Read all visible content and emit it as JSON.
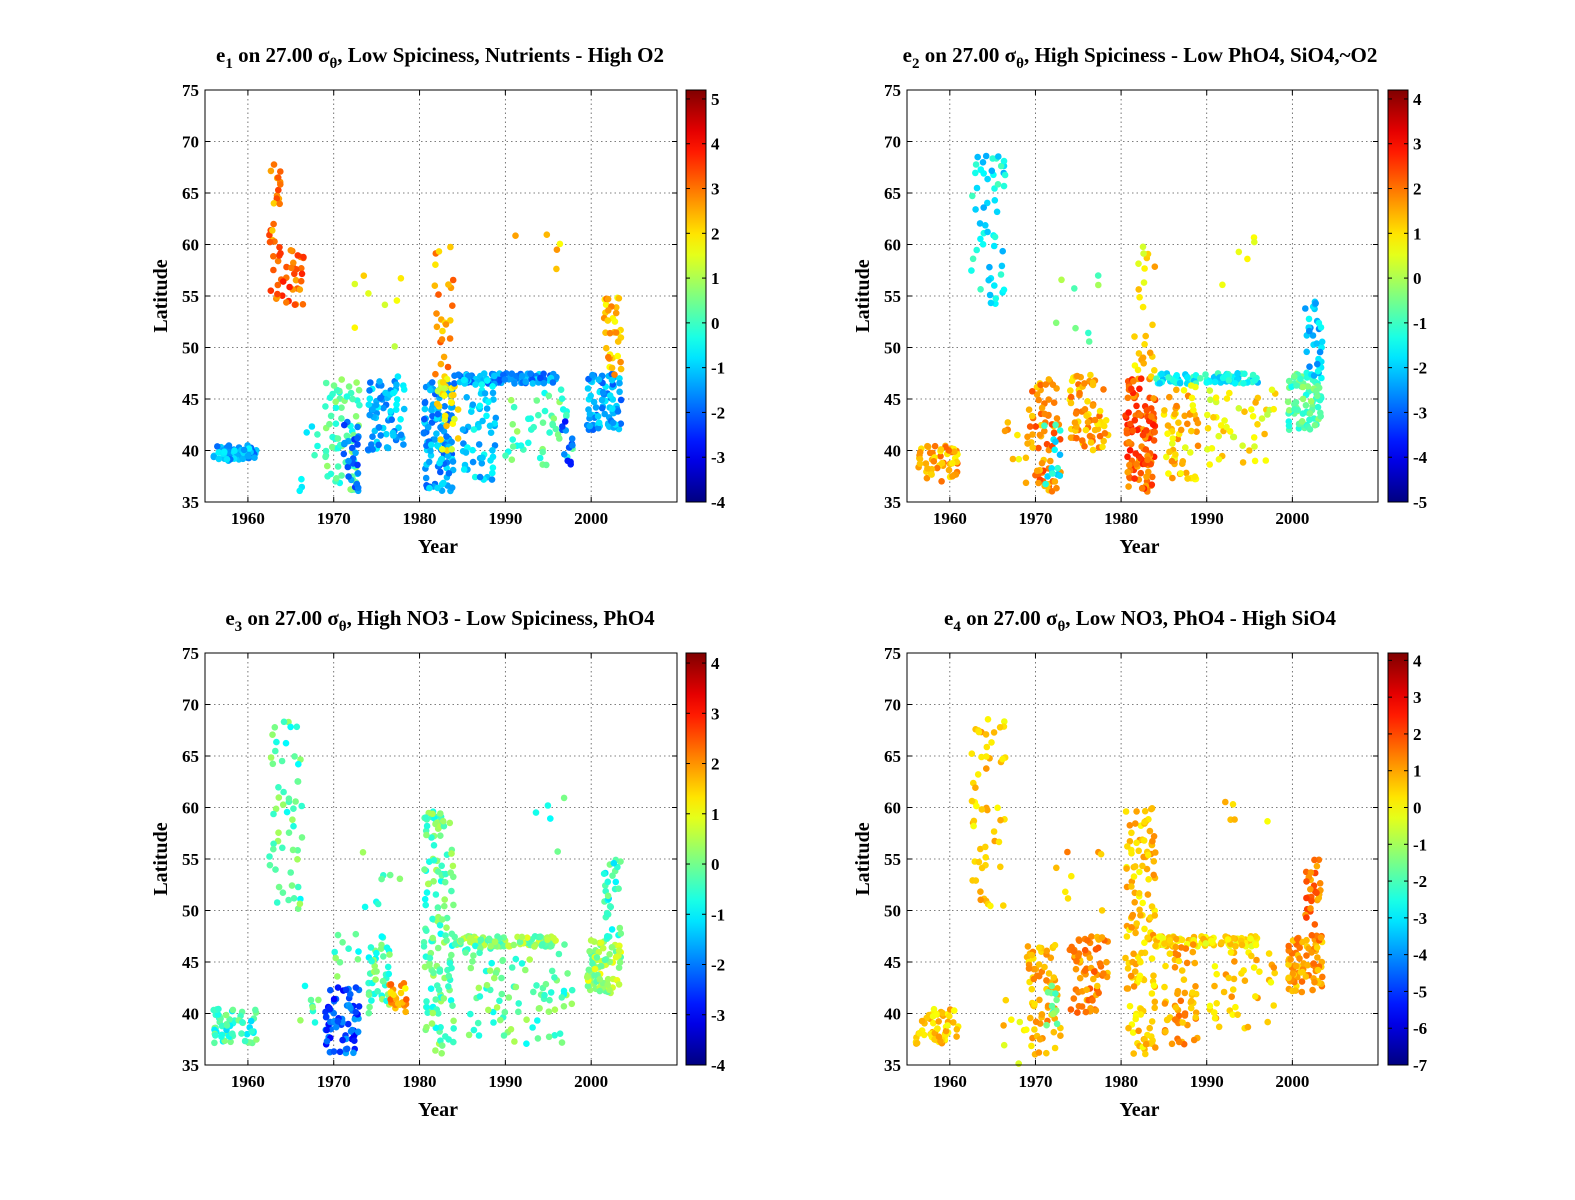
{
  "chart_data": [
    {
      "type": "scatter",
      "title": {
        "base": "e",
        "sub": "1",
        "pre": " on 27.00 ",
        "sigma": "σ",
        "sigma_sub": "θ",
        "rest": ", Low Spiciness, Nutrients - High O2"
      },
      "xlabel": "Year",
      "ylabel": "Latitude",
      "xlim": [
        1955,
        2010
      ],
      "ylim": [
        35,
        75
      ],
      "xticks": [
        1960,
        1970,
        1980,
        1990,
        2000
      ],
      "yticks": [
        35,
        40,
        45,
        50,
        55,
        60,
        65,
        70,
        75
      ],
      "grid": true,
      "colorbar": {
        "min": -4,
        "max": 5.2,
        "ticks": [
          -4,
          -3,
          -2,
          -1,
          0,
          1,
          2,
          3,
          4,
          5
        ]
      },
      "colormap": "jet",
      "groups": [
        {
          "x": [
            1956,
            1961
          ],
          "y": [
            39,
            40.5
          ],
          "v": -1.3,
          "n": 60
        },
        {
          "x": [
            1962.5,
            1966.5
          ],
          "y": [
            54,
            60
          ],
          "v": 3.2,
          "n": 40
        },
        {
          "x": [
            1962.5,
            1963.8
          ],
          "y": [
            60,
            69
          ],
          "v": 2.8,
          "n": 20
        },
        {
          "x": [
            1966,
            1969
          ],
          "y": [
            35,
            43
          ],
          "v": -0.2,
          "n": 8
        },
        {
          "x": [
            1969,
            1973
          ],
          "y": [
            36,
            47
          ],
          "v": 0.2,
          "n": 70
        },
        {
          "x": [
            1971,
            1973
          ],
          "y": [
            36,
            43
          ],
          "v": -2.0,
          "n": 25
        },
        {
          "x": [
            1974,
            1978.5
          ],
          "y": [
            40,
            47.5
          ],
          "v": -1.2,
          "n": 70
        },
        {
          "x": [
            1972,
            1978
          ],
          "y": [
            50,
            57
          ],
          "v": 1.8,
          "n": 8
        },
        {
          "x": [
            1980.5,
            1984
          ],
          "y": [
            36,
            47
          ],
          "v": -1.4,
          "n": 120
        },
        {
          "x": [
            1981.5,
            1984
          ],
          "y": [
            47,
            60
          ],
          "v": 2.6,
          "n": 25
        },
        {
          "x": [
            1982,
            1984.5
          ],
          "y": [
            40,
            47
          ],
          "v": 1.8,
          "n": 30
        },
        {
          "x": [
            1984,
            1996
          ],
          "y": [
            46.5,
            47.5
          ],
          "v": -1.5,
          "n": 90
        },
        {
          "x": [
            1985,
            1989
          ],
          "y": [
            37,
            47
          ],
          "v": -1.0,
          "n": 60
        },
        {
          "x": [
            1990,
            1998
          ],
          "y": [
            38.5,
            46
          ],
          "v": 0.2,
          "n": 45
        },
        {
          "x": [
            1996.5,
            1998
          ],
          "y": [
            38.5,
            43
          ],
          "v": -2.1,
          "n": 12
        },
        {
          "x": [
            1991,
            1998
          ],
          "y": [
            55,
            61
          ],
          "v": 2.2,
          "n": 5
        },
        {
          "x": [
            1999.5,
            2003.5
          ],
          "y": [
            42,
            47.5
          ],
          "v": -1.4,
          "n": 80
        },
        {
          "x": [
            2001.5,
            2003.5
          ],
          "y": [
            47,
            55
          ],
          "v": 2.3,
          "n": 35
        }
      ]
    },
    {
      "type": "scatter",
      "title": {
        "base": "e",
        "sub": "2",
        "pre": " on 27.00 ",
        "sigma": "σ",
        "sigma_sub": "θ",
        "rest": ", High Spiciness - Low PhO4, SiO4,~O2"
      },
      "xlabel": "Year",
      "ylabel": "Latitude",
      "xlim": [
        1955,
        2010
      ],
      "ylim": [
        35,
        75
      ],
      "xticks": [
        1960,
        1970,
        1980,
        1990,
        2000
      ],
      "yticks": [
        35,
        40,
        45,
        50,
        55,
        60,
        65,
        70,
        75
      ],
      "grid": true,
      "colorbar": {
        "min": -5,
        "max": 4.2,
        "ticks": [
          -5,
          -4,
          -3,
          -2,
          -1,
          0,
          1,
          2,
          3,
          4
        ]
      },
      "colormap": "jet",
      "groups": [
        {
          "x": [
            1956,
            1961
          ],
          "y": [
            37,
            40.5
          ],
          "v": 1.5,
          "n": 60
        },
        {
          "x": [
            1962.5,
            1966.5
          ],
          "y": [
            54,
            69
          ],
          "v": -1.6,
          "n": 55
        },
        {
          "x": [
            1966,
            1969
          ],
          "y": [
            35,
            43
          ],
          "v": 1.2,
          "n": 8
        },
        {
          "x": [
            1969,
            1973
          ],
          "y": [
            36,
            47
          ],
          "v": 1.8,
          "n": 70
        },
        {
          "x": [
            1971,
            1973
          ],
          "y": [
            36,
            43
          ],
          "v": -1.5,
          "n": 15
        },
        {
          "x": [
            1974,
            1978.5
          ],
          "y": [
            40,
            47.5
          ],
          "v": 1.5,
          "n": 70
        },
        {
          "x": [
            1972,
            1978
          ],
          "y": [
            50,
            57
          ],
          "v": -0.5,
          "n": 8
        },
        {
          "x": [
            1980.5,
            1984
          ],
          "y": [
            36,
            47
          ],
          "v": 2.2,
          "n": 120
        },
        {
          "x": [
            1981.5,
            1984
          ],
          "y": [
            47,
            60
          ],
          "v": 1.0,
          "n": 25
        },
        {
          "x": [
            1984,
            1996
          ],
          "y": [
            46.5,
            47.5
          ],
          "v": -1.5,
          "n": 90
        },
        {
          "x": [
            1985,
            1989
          ],
          "y": [
            37,
            47
          ],
          "v": 1.2,
          "n": 60
        },
        {
          "x": [
            1990,
            1998
          ],
          "y": [
            38.5,
            46
          ],
          "v": 0.8,
          "n": 45
        },
        {
          "x": [
            1991,
            1998
          ],
          "y": [
            55,
            61
          ],
          "v": 1.0,
          "n": 5
        },
        {
          "x": [
            1999.5,
            2003.5
          ],
          "y": [
            42,
            47.5
          ],
          "v": -0.8,
          "n": 80
        },
        {
          "x": [
            2001.5,
            2003.5
          ],
          "y": [
            47,
            55
          ],
          "v": -2.0,
          "n": 35
        }
      ]
    },
    {
      "type": "scatter",
      "title": {
        "base": "e",
        "sub": "3",
        "pre": " on 27.00 ",
        "sigma": "σ",
        "sigma_sub": "θ",
        "rest": ", High NO3 - Low Spiciness, PhO4"
      },
      "xlabel": "Year",
      "ylabel": "Latitude",
      "xlim": [
        1955,
        2010
      ],
      "ylim": [
        35,
        75
      ],
      "xticks": [
        1960,
        1970,
        1980,
        1990,
        2000
      ],
      "yticks": [
        35,
        40,
        45,
        50,
        55,
        60,
        65,
        70,
        75
      ],
      "grid": true,
      "colorbar": {
        "min": -4,
        "max": 4.2,
        "ticks": [
          -4,
          -3,
          -2,
          -1,
          0,
          1,
          2,
          3,
          4
        ]
      },
      "colormap": "jet",
      "groups": [
        {
          "x": [
            1956,
            1961
          ],
          "y": [
            37,
            40.5
          ],
          "v": -0.5,
          "n": 60
        },
        {
          "x": [
            1962.5,
            1966.5
          ],
          "y": [
            50,
            69
          ],
          "v": -0.3,
          "n": 55
        },
        {
          "x": [
            1966,
            1969
          ],
          "y": [
            35,
            43
          ],
          "v": -0.3,
          "n": 8
        },
        {
          "x": [
            1969,
            1973
          ],
          "y": [
            36,
            43
          ],
          "v": -2.3,
          "n": 70
        },
        {
          "x": [
            1970,
            1973
          ],
          "y": [
            43,
            48
          ],
          "v": -0.3,
          "n": 10
        },
        {
          "x": [
            1974,
            1976.5
          ],
          "y": [
            40,
            47.5
          ],
          "v": -0.3,
          "n": 40
        },
        {
          "x": [
            1976.5,
            1978.5
          ],
          "y": [
            40,
            43
          ],
          "v": 1.8,
          "n": 25
        },
        {
          "x": [
            1972,
            1978
          ],
          "y": [
            50,
            57
          ],
          "v": -0.3,
          "n": 8
        },
        {
          "x": [
            1980.5,
            1984
          ],
          "y": [
            36,
            60
          ],
          "v": -0.2,
          "n": 140
        },
        {
          "x": [
            1984,
            1996
          ],
          "y": [
            46.5,
            47.5
          ],
          "v": 0.2,
          "n": 90
        },
        {
          "x": [
            1985,
            1998
          ],
          "y": [
            37,
            47
          ],
          "v": -0.2,
          "n": 90
        },
        {
          "x": [
            1991,
            1998
          ],
          "y": [
            55,
            61
          ],
          "v": -0.3,
          "n": 5
        },
        {
          "x": [
            1999.5,
            2003.5
          ],
          "y": [
            42,
            47.5
          ],
          "v": 0.4,
          "n": 80
        },
        {
          "x": [
            2001.5,
            2003.5
          ],
          "y": [
            47,
            55
          ],
          "v": -0.5,
          "n": 35
        }
      ]
    },
    {
      "type": "scatter",
      "title": {
        "base": "e",
        "sub": "4",
        "pre": " on 27.00 ",
        "sigma": "σ",
        "sigma_sub": "θ",
        "rest": ", Low NO3, PhO4 - High SiO4"
      },
      "xlabel": "Year",
      "ylabel": "Latitude",
      "xlim": [
        1955,
        2010
      ],
      "ylim": [
        35,
        75
      ],
      "xticks": [
        1960,
        1970,
        1980,
        1990,
        2000
      ],
      "yticks": [
        35,
        40,
        45,
        50,
        55,
        60,
        65,
        70,
        75
      ],
      "grid": true,
      "colorbar": {
        "min": -7,
        "max": 4.2,
        "ticks": [
          -7,
          -6,
          -5,
          -4,
          -3,
          -2,
          -1,
          0,
          1,
          2,
          3,
          4
        ]
      },
      "colormap": "jet",
      "groups": [
        {
          "x": [
            1956,
            1961
          ],
          "y": [
            37,
            40.5
          ],
          "v": 0.5,
          "n": 60
        },
        {
          "x": [
            1962.5,
            1966.5
          ],
          "y": [
            50,
            69
          ],
          "v": 0.5,
          "n": 55
        },
        {
          "x": [
            1966,
            1969
          ],
          "y": [
            35,
            43
          ],
          "v": 0.3,
          "n": 8
        },
        {
          "x": [
            1969,
            1973
          ],
          "y": [
            36,
            47
          ],
          "v": 0.8,
          "n": 70
        },
        {
          "x": [
            1971,
            1973
          ],
          "y": [
            38,
            43
          ],
          "v": -1.5,
          "n": 12
        },
        {
          "x": [
            1974,
            1978.5
          ],
          "y": [
            40,
            47.5
          ],
          "v": 1.2,
          "n": 70
        },
        {
          "x": [
            1972,
            1978
          ],
          "y": [
            50,
            57
          ],
          "v": 0.8,
          "n": 8
        },
        {
          "x": [
            1980.5,
            1984
          ],
          "y": [
            36,
            60
          ],
          "v": 0.6,
          "n": 140
        },
        {
          "x": [
            1984,
            1996
          ],
          "y": [
            46.5,
            47.5
          ],
          "v": 0.3,
          "n": 90
        },
        {
          "x": [
            1985,
            1989
          ],
          "y": [
            37,
            47
          ],
          "v": 1.0,
          "n": 60
        },
        {
          "x": [
            1990,
            1998
          ],
          "y": [
            38.5,
            46
          ],
          "v": 0.6,
          "n": 45
        },
        {
          "x": [
            1991,
            1998
          ],
          "y": [
            55,
            61
          ],
          "v": 0.3,
          "n": 5
        },
        {
          "x": [
            1999.5,
            2003.5
          ],
          "y": [
            42,
            47.5
          ],
          "v": 1.0,
          "n": 80
        },
        {
          "x": [
            2001.5,
            2003.5
          ],
          "y": [
            47,
            55
          ],
          "v": 1.5,
          "n": 35
        }
      ]
    }
  ]
}
